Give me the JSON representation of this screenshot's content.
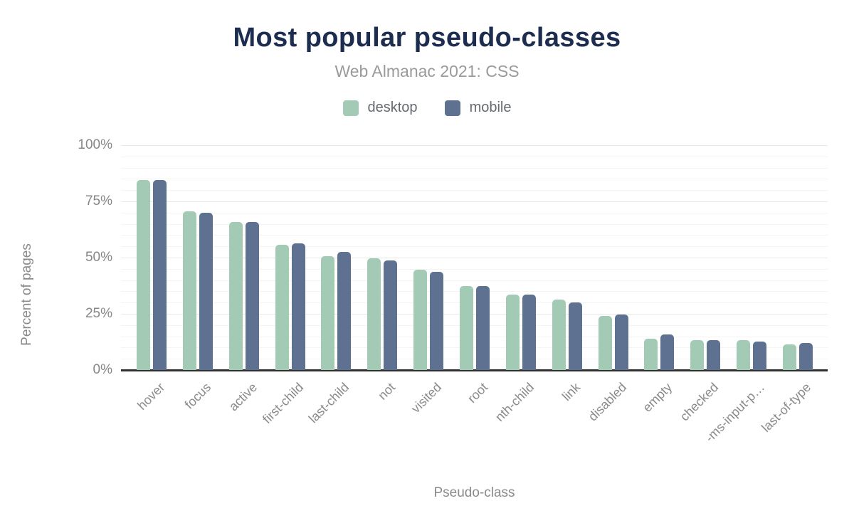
{
  "chart_data": {
    "type": "bar",
    "title": "Most popular pseudo-classes",
    "subtitle": "Web Almanac 2021: CSS",
    "xlabel": "Pseudo-class",
    "ylabel": "Percent of pages",
    "categories": [
      "hover",
      "focus",
      "active",
      "first-child",
      "last-child",
      "not",
      "visited",
      "root",
      "nth-child",
      "link",
      "disabled",
      "empty",
      "checked",
      "-ms-input-p…",
      "last-of-type"
    ],
    "series": [
      {
        "name": "desktop",
        "color": "#a3cab5",
        "values": [
          84.4,
          70.5,
          65.8,
          55.7,
          50.6,
          49.6,
          44.7,
          37.2,
          33.4,
          31.4,
          24.0,
          14.0,
          13.4,
          13.3,
          11.3
        ]
      },
      {
        "name": "mobile",
        "color": "#5f7191",
        "values": [
          84.5,
          70.0,
          65.7,
          56.4,
          52.5,
          48.6,
          43.7,
          37.2,
          33.5,
          30.1,
          24.7,
          15.8,
          13.2,
          12.6,
          11.9
        ]
      }
    ],
    "ylim": [
      0,
      100
    ],
    "yticks": [
      0,
      25,
      50,
      75,
      100
    ],
    "ytick_suffix": "%",
    "grid": {
      "minor_step": 5,
      "major_step": 25,
      "grid_on": true
    },
    "legend_position": "top",
    "colors": {
      "title": "#1c2d50",
      "subtitle": "#9a9a9a",
      "axis_text": "#8a8a8a",
      "axis_line": "#2f2f2f",
      "grid_minor": "#f4f4f4",
      "grid_major": "#e8e8e8",
      "background": "#ffffff"
    }
  }
}
